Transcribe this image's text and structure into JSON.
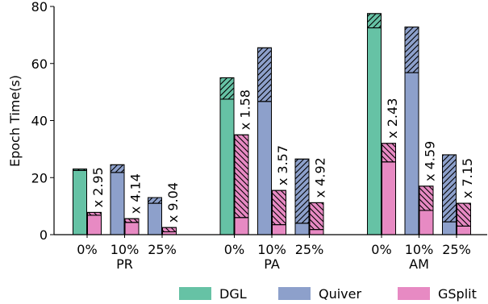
{
  "chart_data": {
    "type": "bar",
    "ylabel": "Epoch Time(s)",
    "ylim": [
      0,
      80
    ],
    "yticks": [
      0,
      20,
      40,
      60,
      80
    ],
    "groups": [
      {
        "name": "PR",
        "categories": [
          "0%",
          "10%",
          "25%"
        ],
        "bars": [
          {
            "category": "0%",
            "system": "DGL",
            "solid": 22.5,
            "total": 23.0
          },
          {
            "category": "0%",
            "system": "GSplit",
            "solid": 6.8,
            "total": 7.8
          },
          {
            "category": "10%",
            "system": "Quiver",
            "solid": 21.8,
            "total": 24.5
          },
          {
            "category": "10%",
            "system": "GSplit",
            "solid": 4.3,
            "total": 5.6
          },
          {
            "category": "25%",
            "system": "Quiver",
            "solid": 11.0,
            "total": 13.0
          },
          {
            "category": "25%",
            "system": "GSplit",
            "solid": 1.0,
            "total": 2.5
          }
        ],
        "speedups": [
          "x 2.95",
          "x 4.14",
          "x 9.04"
        ]
      },
      {
        "name": "PA",
        "categories": [
          "0%",
          "10%",
          "25%"
        ],
        "bars": [
          {
            "category": "0%",
            "system": "DGL",
            "solid": 47.5,
            "total": 55.0
          },
          {
            "category": "0%",
            "system": "GSplit",
            "solid": 6.0,
            "total": 35.0
          },
          {
            "category": "10%",
            "system": "Quiver",
            "solid": 46.7,
            "total": 65.5
          },
          {
            "category": "10%",
            "system": "GSplit",
            "solid": 3.5,
            "total": 15.5
          },
          {
            "category": "25%",
            "system": "Quiver",
            "solid": 4.0,
            "total": 26.5
          },
          {
            "category": "25%",
            "system": "GSplit",
            "solid": 1.8,
            "total": 11.2
          }
        ],
        "speedups": [
          "x 1.58",
          "x 3.57",
          "x 4.92"
        ]
      },
      {
        "name": "AM",
        "categories": [
          "0%",
          "10%",
          "25%"
        ],
        "bars": [
          {
            "category": "0%",
            "system": "DGL",
            "solid": 72.5,
            "total": 77.5
          },
          {
            "category": "0%",
            "system": "GSplit",
            "solid": 25.5,
            "total": 32.0
          },
          {
            "category": "10%",
            "system": "Quiver",
            "solid": 56.8,
            "total": 72.8
          },
          {
            "category": "10%",
            "system": "GSplit",
            "solid": 8.5,
            "total": 17.0
          },
          {
            "category": "25%",
            "system": "Quiver",
            "solid": 4.5,
            "total": 28.0
          },
          {
            "category": "25%",
            "system": "GSplit",
            "solid": 3.0,
            "total": 11.0
          }
        ],
        "speedups": [
          "x 2.43",
          "x 4.59",
          "x 7.15"
        ]
      }
    ],
    "series": [
      {
        "name": "DGL",
        "color": "#66c2a5"
      },
      {
        "name": "Quiver",
        "color": "#8da0cb"
      },
      {
        "name": "GSplit",
        "color": "#e78ac3"
      }
    ],
    "legend": "bottom-right",
    "grid": false
  }
}
